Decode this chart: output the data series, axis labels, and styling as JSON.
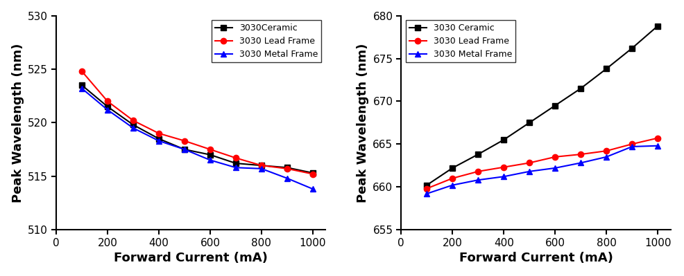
{
  "left": {
    "xlabel": "Forward Current (mA)",
    "ylabel": "Peak Wavelength (nm)",
    "xlim": [
      0,
      1050
    ],
    "ylim": [
      510,
      530
    ],
    "xticks": [
      0,
      200,
      400,
      600,
      800,
      1000
    ],
    "yticks": [
      510,
      515,
      520,
      525,
      530
    ],
    "x": [
      100,
      200,
      300,
      400,
      500,
      600,
      700,
      800,
      900,
      1000
    ],
    "ceramic": [
      523.5,
      521.5,
      519.8,
      518.5,
      517.5,
      517.0,
      516.2,
      516.0,
      515.8,
      515.3
    ],
    "lead": [
      524.8,
      522.0,
      520.2,
      519.0,
      518.3,
      517.5,
      516.7,
      516.0,
      515.7,
      515.2
    ],
    "metal": [
      523.2,
      521.2,
      519.5,
      518.3,
      517.5,
      516.5,
      515.8,
      515.7,
      514.8,
      513.8
    ],
    "legend_ceramic": "3030Ceramic",
    "legend_lead": "3030 Lead Frame",
    "legend_metal": "3030 Metal Frame"
  },
  "right": {
    "xlabel": "Forward Current (mA)",
    "ylabel": "Peak Wavelength (nm)",
    "xlim": [
      0,
      1050
    ],
    "ylim": [
      655,
      680
    ],
    "xticks": [
      0,
      200,
      400,
      600,
      800,
      1000
    ],
    "yticks": [
      655,
      660,
      665,
      670,
      675,
      680
    ],
    "x": [
      100,
      200,
      300,
      400,
      500,
      600,
      700,
      800,
      900,
      1000
    ],
    "ceramic": [
      660.2,
      662.2,
      663.8,
      665.5,
      667.5,
      669.5,
      671.5,
      673.8,
      676.2,
      678.8
    ],
    "lead": [
      659.8,
      661.0,
      661.8,
      662.3,
      662.8,
      663.5,
      663.8,
      664.2,
      665.0,
      665.7
    ],
    "metal": [
      659.2,
      660.2,
      660.8,
      661.2,
      661.8,
      662.2,
      662.8,
      663.5,
      664.7,
      664.8
    ],
    "legend_ceramic": "3030 Ceramic",
    "legend_lead": "3030 Lead Frame",
    "legend_metal": "3030 Metal Frame"
  },
  "colors": {
    "ceramic": "#000000",
    "lead": "#ff0000",
    "metal": "#0000ff"
  },
  "linewidth": 1.5,
  "markersize": 6,
  "label_fontsize": 13,
  "tick_fontsize": 11,
  "legend_fontsize": 9
}
